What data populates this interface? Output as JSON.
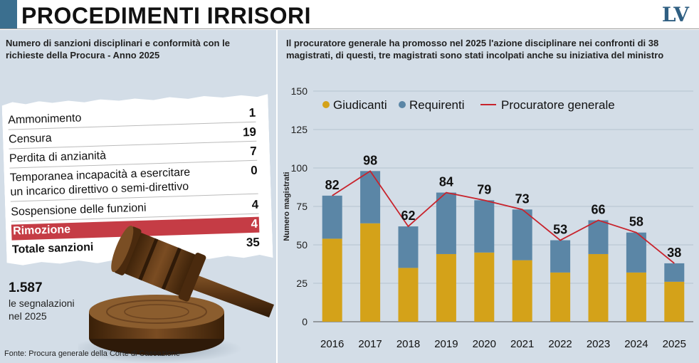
{
  "header": {
    "title": "PROCEDIMENTI IRRISORI",
    "logo": "LV"
  },
  "left": {
    "subtitle": "Numero di sanzioni disciplinari e conformità con le richieste della Procura - Anno 2025",
    "sanctions": [
      {
        "label": "Ammonimento",
        "value": "1"
      },
      {
        "label": "Censura",
        "value": "19"
      },
      {
        "label": "Perdita di anzianità",
        "value": "7"
      },
      {
        "label": "Temporanea incapacità a esercitare",
        "label2": "un incarico direttivo o semi-direttivo",
        "value": "0"
      },
      {
        "label": "Sospensione delle funzioni",
        "value": "4"
      },
      {
        "label": "Rimozione",
        "value": "4"
      },
      {
        "label": "Totale sanzioni",
        "value": "35"
      }
    ],
    "stat_number": "1.587",
    "stat_text": "le segnalazioni nel 2025",
    "source": "Fonte: Procura generale della Corte di Cassazione"
  },
  "right": {
    "subtitle": "Il procuratore generale ha promosso nel 2025 l'azione disciplinare nei confronti di 38 magistrati, di questi, tre magistrati sono stati incolpati anche su iniziativa del ministro"
  },
  "colors": {
    "accent": "#3b6f8f",
    "panel_bg": "#d3dde7",
    "giudicanti": "#d4a219",
    "requirenti": "#5b86a6",
    "procuratore": "#c8232c",
    "highlight_row": "#c53c45"
  },
  "chart_data": {
    "type": "bar",
    "stacked": true,
    "categories": [
      "2016",
      "2017",
      "2018",
      "2019",
      "2020",
      "2021",
      "2022",
      "2023",
      "2024",
      "2025"
    ],
    "series": [
      {
        "name": "Giudicanti",
        "type": "bar",
        "values": [
          54,
          64,
          35,
          44,
          45,
          40,
          32,
          44,
          32,
          26
        ]
      },
      {
        "name": "Requirenti",
        "type": "bar",
        "values": [
          28,
          34,
          27,
          40,
          34,
          33,
          21,
          22,
          26,
          12
        ]
      },
      {
        "name": "Procuratore generale",
        "type": "line",
        "values": [
          82,
          98,
          62,
          84,
          79,
          73,
          53,
          66,
          58,
          38
        ]
      }
    ],
    "data_labels": [
      "82",
      "98",
      "62",
      "84",
      "79",
      "73",
      "53",
      "66",
      "58",
      "38"
    ],
    "ylabel": "Numero magistrati",
    "xlabel": "",
    "ylim": [
      0,
      150
    ],
    "yticks": [
      0,
      25,
      50,
      75,
      100,
      125,
      150
    ],
    "grid": true,
    "legend_position": "top-left"
  }
}
